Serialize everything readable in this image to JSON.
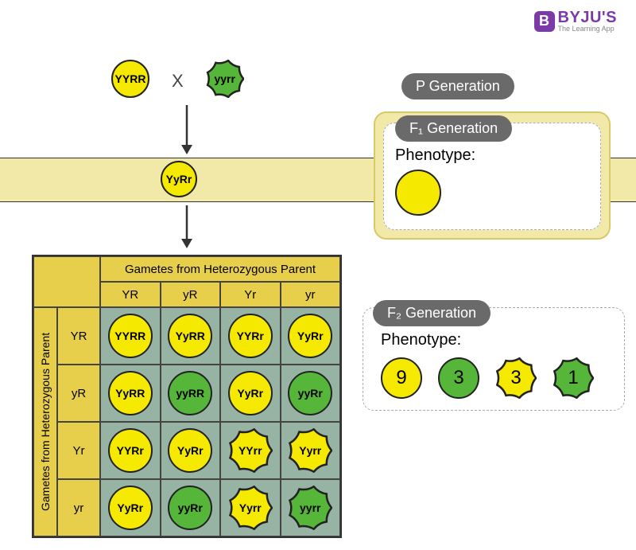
{
  "logo": {
    "badge": "B",
    "main": "BYJU'S",
    "sub": "The Learning App"
  },
  "colors": {
    "yellow_seed": "#f6e900",
    "green_seed": "#55b63a",
    "band": "#f2e9a8",
    "punnett_head": "#e8cf4b",
    "punnett_cell": "#96b3a4",
    "pill": "#6a6a6a",
    "border": "#222222"
  },
  "p": {
    "label": "P Generation",
    "parent1": {
      "genotype": "YYRR",
      "color": "yellow",
      "shape": "round"
    },
    "cross": "X",
    "parent2": {
      "genotype": "yyrr",
      "color": "green",
      "shape": "wrinkled"
    }
  },
  "f1": {
    "label": "F₁ Generation",
    "phenotype_label": "Phenotype:",
    "genotype": "YyRr",
    "seed": {
      "color": "yellow",
      "shape": "round"
    }
  },
  "f2": {
    "label": "F₂ Generation",
    "phenotype_label": "Phenotype:",
    "ratios": [
      {
        "n": "9",
        "color": "yellow",
        "shape": "round"
      },
      {
        "n": "3",
        "color": "green",
        "shape": "round"
      },
      {
        "n": "3",
        "color": "yellow",
        "shape": "wrinkled"
      },
      {
        "n": "1",
        "color": "green",
        "shape": "wrinkled"
      }
    ]
  },
  "punnett": {
    "top_title": "Gametes from Heterozygous Parent",
    "left_title": "Gametes from Heterozygous Parent",
    "cols": [
      "YR",
      "yR",
      "Yr",
      "yr"
    ],
    "rows": [
      "YR",
      "yR",
      "Yr",
      "yr"
    ],
    "cells": [
      [
        {
          "g": "YYRR",
          "c": "yellow",
          "s": "round"
        },
        {
          "g": "YyRR",
          "c": "yellow",
          "s": "round"
        },
        {
          "g": "YYRr",
          "c": "yellow",
          "s": "round"
        },
        {
          "g": "YyRr",
          "c": "yellow",
          "s": "round"
        }
      ],
      [
        {
          "g": "YyRR",
          "c": "yellow",
          "s": "round"
        },
        {
          "g": "yyRR",
          "c": "green",
          "s": "round"
        },
        {
          "g": "YyRr",
          "c": "yellow",
          "s": "round"
        },
        {
          "g": "yyRr",
          "c": "green",
          "s": "round"
        }
      ],
      [
        {
          "g": "YYRr",
          "c": "yellow",
          "s": "round"
        },
        {
          "g": "YyRr",
          "c": "yellow",
          "s": "round"
        },
        {
          "g": "YYrr",
          "c": "yellow",
          "s": "wrinkled"
        },
        {
          "g": "Yyrr",
          "c": "yellow",
          "s": "wrinkled"
        }
      ],
      [
        {
          "g": "YyRr",
          "c": "yellow",
          "s": "round"
        },
        {
          "g": "yyRr",
          "c": "green",
          "s": "round"
        },
        {
          "g": "Yyrr",
          "c": "yellow",
          "s": "wrinkled"
        },
        {
          "g": "yyrr",
          "c": "green",
          "s": "wrinkled"
        }
      ]
    ]
  },
  "seed_sizes": {
    "p": 48,
    "f1": 46,
    "f1_big": 58,
    "cell": 56,
    "ratio": 52
  }
}
